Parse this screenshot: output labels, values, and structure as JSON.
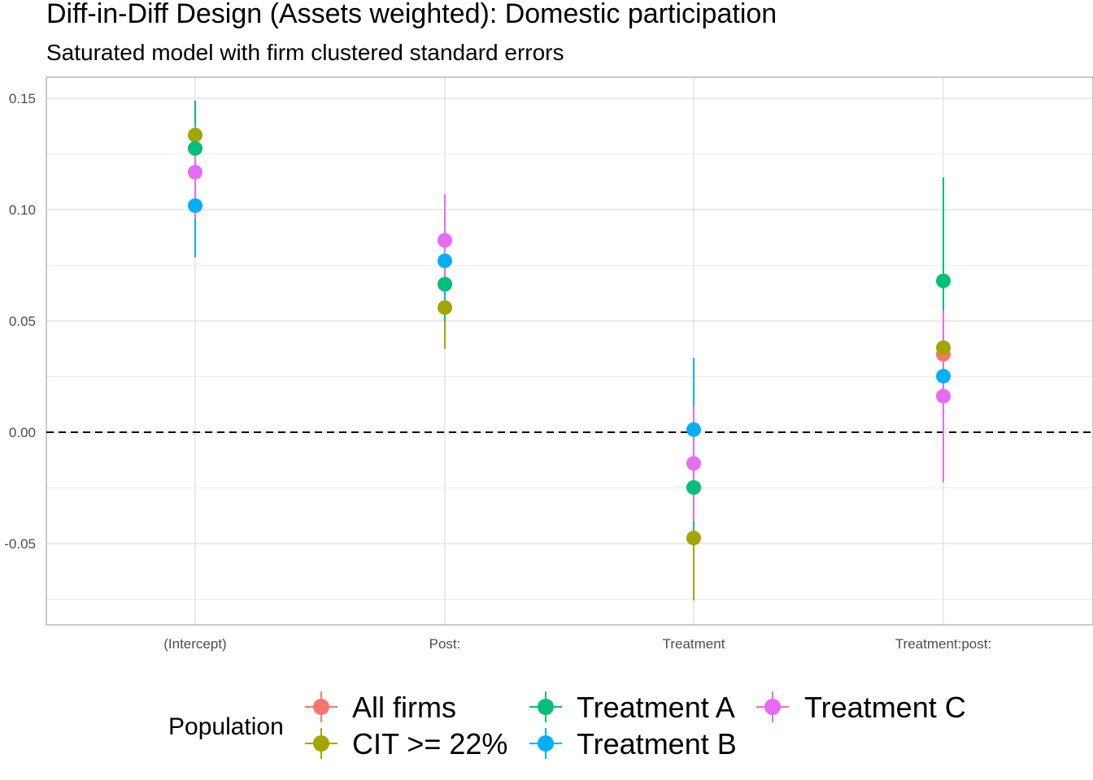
{
  "chart_data": {
    "type": "scatter",
    "title": "Diff-in-Diff Design (Assets weighted): Domestic participation",
    "subtitle": "Saturated model with firm clustered standard errors",
    "xlabel": "",
    "ylabel": "",
    "categories": [
      "(Intercept)",
      "Post:",
      "Treatment",
      "Treatment:post:"
    ],
    "y_ticks": [
      "0.15",
      "0.10",
      "0.05",
      "0.00",
      "-0.05"
    ],
    "y_tick_values": [
      0.15,
      0.1,
      0.05,
      0.0,
      -0.05
    ],
    "ylim": [
      -0.0865,
      0.1595
    ],
    "reference_line": 0,
    "grid": true,
    "legend": {
      "title": "Population",
      "position": "bottom"
    },
    "series": [
      {
        "name": "All firms",
        "color": "#F8766D",
        "values": [
          0.1275,
          0.0665,
          -0.0248,
          0.035
        ],
        "lower": [
          0.106,
          0.05,
          -0.044,
          0.004
        ],
        "upper": [
          0.149,
          0.083,
          -0.0056,
          0.066
        ]
      },
      {
        "name": "CIT >= 22%",
        "color": "#A3A500",
        "values": [
          0.1335,
          0.056,
          -0.0475,
          0.038
        ],
        "lower": [
          0.118,
          0.0375,
          -0.0755,
          -0.005
        ],
        "upper": [
          0.149,
          0.0745,
          -0.0195,
          0.081
        ]
      },
      {
        "name": "Treatment A",
        "color": "#00BF7D",
        "values": [
          0.1275,
          0.0665,
          -0.0248,
          0.068
        ],
        "lower": [
          0.106,
          0.05,
          -0.044,
          0.0215
        ],
        "upper": [
          0.149,
          0.083,
          -0.0056,
          0.1145
        ]
      },
      {
        "name": "Treatment B",
        "color": "#00B0F6",
        "values": [
          0.1018,
          0.077,
          0.0012,
          0.0252
        ],
        "lower": [
          0.0785,
          0.059,
          -0.031,
          -0.005
        ],
        "upper": [
          0.125,
          0.095,
          0.0334,
          0.0554
        ]
      },
      {
        "name": "Treatment C",
        "color": "#E76BF3",
        "values": [
          0.1168,
          0.0862,
          -0.014,
          0.0162
        ],
        "lower": [
          0.096,
          0.0655,
          -0.04,
          -0.0225
        ],
        "upper": [
          0.1375,
          0.107,
          0.012,
          0.0549
        ]
      }
    ]
  }
}
